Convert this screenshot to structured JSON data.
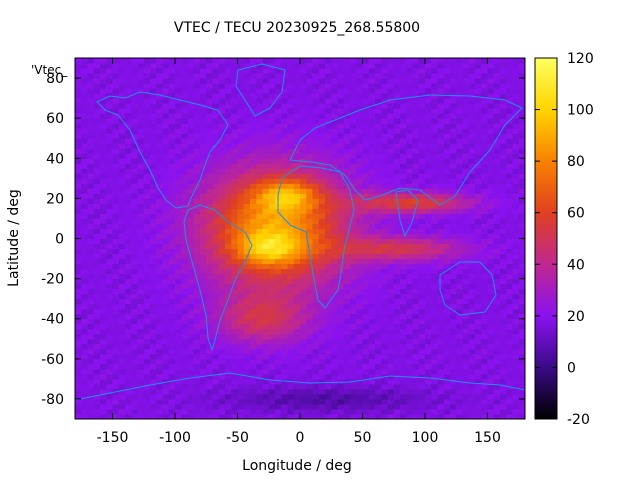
{
  "chart_data": {
    "type": "heatmap",
    "title": "VTEC / TECU 20230925_268.55800",
    "xlabel": "Longitude / deg",
    "ylabel": "Latitude / deg",
    "legend_key": "'Vtec_",
    "xlim": [
      -180,
      180
    ],
    "ylim": [
      -90,
      90
    ],
    "xticks": [
      -150,
      -100,
      -50,
      0,
      50,
      100,
      150
    ],
    "yticks": [
      -80,
      -60,
      -40,
      -20,
      0,
      20,
      40,
      60,
      80
    ],
    "colorbar": {
      "range": [
        -20,
        120
      ],
      "ticks": [
        -20,
        0,
        20,
        40,
        60,
        80,
        100,
        120
      ],
      "palette": [
        "#000000",
        "#3a0a86",
        "#8a12f0",
        "#c02890",
        "#e04020",
        "#f88200",
        "#ffd400",
        "#ffff60"
      ]
    },
    "background_value": 18,
    "grid_resolution_deg": {
      "lon": 5,
      "lat": 2.5
    },
    "features": [
      {
        "name": "Africa / Atlantic crest",
        "lon": -20,
        "lat": 0,
        "peak_vtec": 112
      },
      {
        "name": "Northern anomaly crest",
        "lon": -10,
        "lat": 22,
        "peak_vtec": 105
      },
      {
        "name": "Southern anomaly crest",
        "lon": -25,
        "lat": -5,
        "peak_vtec": 98
      },
      {
        "name": "Indian Ocean band",
        "lon": 90,
        "lat": 18,
        "peak_vtec": 62
      },
      {
        "name": "Southern Indian band",
        "lon": 90,
        "lat": -5,
        "peak_vtec": 55
      },
      {
        "name": "South Atlantic extension",
        "lon": -30,
        "lat": -40,
        "peak_vtec": 55
      }
    ],
    "overlay": "coastlines"
  }
}
